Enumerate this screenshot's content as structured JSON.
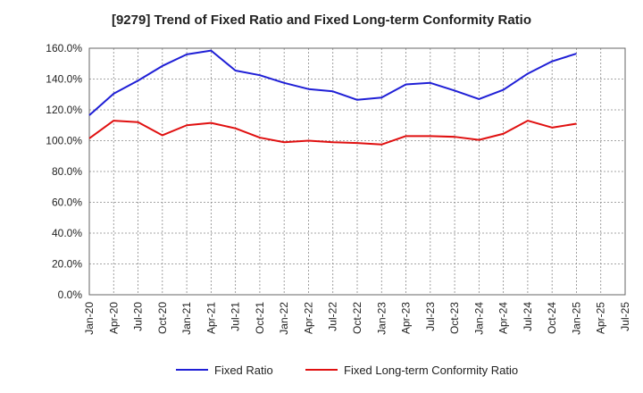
{
  "chart_data": {
    "type": "line",
    "title": "[9279]  Trend of Fixed Ratio and Fixed Long-term Conformity Ratio",
    "xlabel": "",
    "ylabel": "",
    "ylim": [
      0,
      160
    ],
    "y_ticks": [
      "0.0%",
      "20.0%",
      "40.0%",
      "60.0%",
      "80.0%",
      "100.0%",
      "120.0%",
      "140.0%",
      "160.0%"
    ],
    "x_ticks": [
      "Jan-20",
      "Apr-20",
      "Jul-20",
      "Oct-20",
      "Jan-21",
      "Apr-21",
      "Jul-21",
      "Oct-21",
      "Jan-22",
      "Apr-22",
      "Jul-22",
      "Oct-22",
      "Jan-23",
      "Apr-23",
      "Jul-23",
      "Oct-23",
      "Jan-24",
      "Apr-24",
      "Jul-24",
      "Oct-24",
      "Jan-25",
      "Apr-25",
      "Jul-25"
    ],
    "grid": true,
    "legend_position": "bottom",
    "series": [
      {
        "name": "Fixed Ratio",
        "color": "#1f1fd6",
        "values": [
          116.5,
          130.5,
          139.0,
          148.5,
          156.0,
          158.5,
          145.5,
          142.5,
          137.5,
          133.5,
          132.0,
          126.5,
          128.0,
          136.5,
          137.5,
          132.5,
          127.0,
          133.0,
          143.5,
          151.5,
          156.5
        ]
      },
      {
        "name": "Fixed Long-term Conformity Ratio",
        "color": "#e01010",
        "values": [
          101.5,
          113.0,
          112.0,
          103.5,
          110.0,
          111.5,
          108.0,
          102.0,
          99.0,
          100.0,
          99.0,
          98.5,
          97.5,
          103.0,
          103.0,
          102.5,
          100.5,
          104.5,
          113.0,
          108.5,
          111.0
        ]
      }
    ]
  }
}
